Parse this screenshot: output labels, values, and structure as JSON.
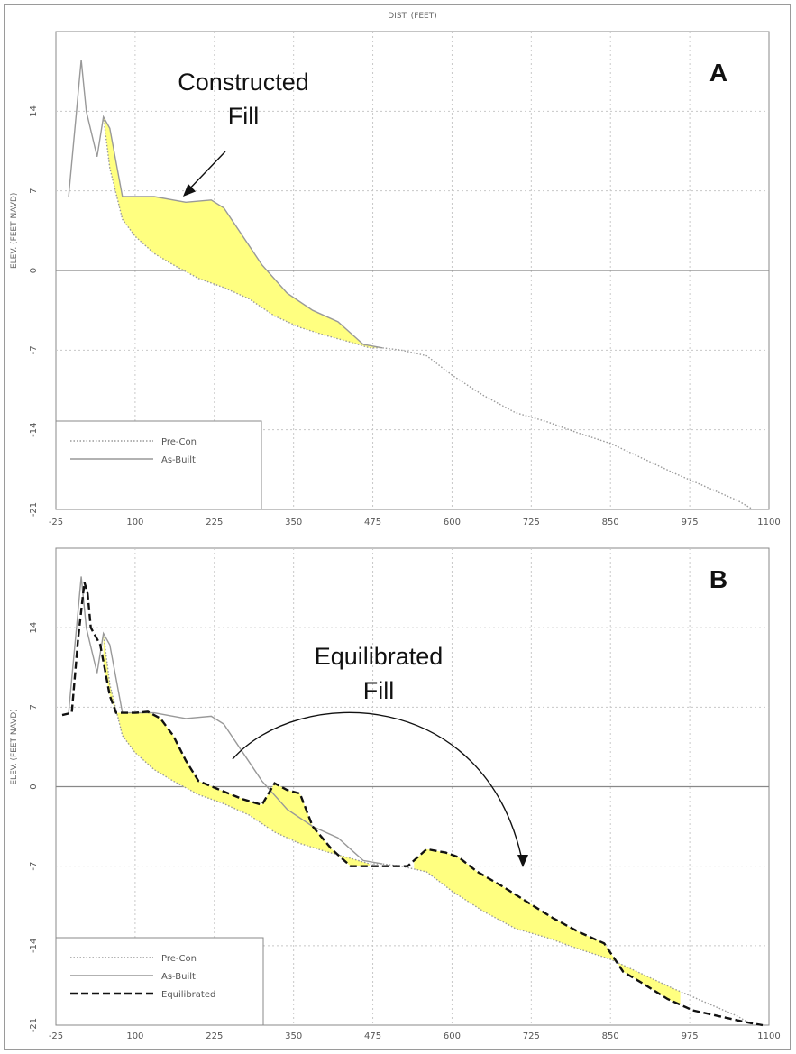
{
  "chart_data": [
    {
      "type": "line",
      "panel_label": "A",
      "title": "DIST. (FEET)",
      "xlabel": "DIST. (FEET)",
      "ylabel": "ELEV. (FEET NAVD)",
      "xlim": [
        -25,
        1100
      ],
      "ylim": [
        -21,
        21
      ],
      "x_ticks": [
        -25,
        100,
        225,
        350,
        475,
        600,
        725,
        850,
        975,
        1100
      ],
      "y_ticks": [
        14,
        7,
        0,
        -7,
        -14,
        -21
      ],
      "grid": true,
      "legend_position": "bottom-left",
      "fill_color": "#ffff80",
      "annotations": [
        {
          "text_lines": [
            "Constructed",
            "Fill"
          ]
        }
      ],
      "series": [
        {
          "name": "Pre-Con",
          "style": "dotted",
          "x": [
            50,
            60,
            80,
            100,
            130,
            160,
            200,
            240,
            280,
            320,
            340,
            360,
            400,
            440,
            470,
            490,
            520,
            560,
            600,
            650,
            700,
            750,
            800,
            850,
            900,
            950,
            1000,
            1050,
            1075
          ],
          "y": [
            13.5,
            9,
            4.5,
            3,
            1.5,
            0.5,
            -0.7,
            -1.5,
            -2.5,
            -4,
            -4.5,
            -5,
            -5.7,
            -6.3,
            -6.8,
            -6.8,
            -7,
            -7.5,
            -9.2,
            -11,
            -12.5,
            -13.3,
            -14.3,
            -15.2,
            -16.5,
            -17.8,
            -19,
            -20.2,
            -21
          ]
        },
        {
          "name": "As-Built",
          "style": "solid",
          "x": [
            -5,
            15,
            23,
            40,
            50,
            60,
            80,
            100,
            130,
            160,
            180,
            220,
            240,
            270,
            300,
            340,
            380,
            420,
            440,
            460,
            490
          ],
          "y": [
            6.5,
            18.5,
            14,
            10,
            13.5,
            12.5,
            6.5,
            6.5,
            6.5,
            6.2,
            6,
            6.2,
            5.5,
            3,
            0.5,
            -2,
            -3.5,
            -4.5,
            -5.5,
            -6.5,
            -6.8
          ]
        }
      ]
    },
    {
      "type": "line",
      "panel_label": "B",
      "xlabel": "",
      "ylabel": "ELEV. (FEET NAVD)",
      "xlim": [
        -25,
        1100
      ],
      "ylim": [
        -21,
        21
      ],
      "x_ticks": [
        -25,
        100,
        225,
        350,
        475,
        600,
        725,
        850,
        975,
        1100
      ],
      "y_ticks": [
        14,
        7,
        0,
        -7,
        -14,
        -21
      ],
      "grid": true,
      "legend_position": "bottom-left",
      "fill_color": "#ffff80",
      "annotations": [
        {
          "text_lines": [
            "Equilibrated",
            "Fill"
          ]
        }
      ],
      "series": [
        {
          "name": "Pre-Con",
          "style": "dotted",
          "x": [
            50,
            60,
            80,
            100,
            130,
            160,
            200,
            240,
            280,
            320,
            340,
            360,
            400,
            440,
            470,
            490,
            520,
            560,
            600,
            650,
            700,
            750,
            800,
            850,
            900,
            950,
            1000,
            1050,
            1075
          ],
          "y": [
            13.5,
            9,
            4.5,
            3,
            1.5,
            0.5,
            -0.7,
            -1.5,
            -2.5,
            -4,
            -4.5,
            -5,
            -5.7,
            -6.3,
            -6.8,
            -6.8,
            -7,
            -7.5,
            -9.2,
            -11,
            -12.5,
            -13.3,
            -14.3,
            -15.2,
            -16.5,
            -17.8,
            -19,
            -20.2,
            -21
          ]
        },
        {
          "name": "As-Built",
          "style": "solid",
          "x": [
            -5,
            15,
            23,
            40,
            50,
            60,
            80,
            100,
            130,
            160,
            180,
            220,
            240,
            270,
            300,
            340,
            380,
            420,
            440,
            460,
            490
          ],
          "y": [
            6.5,
            18.5,
            14,
            10,
            13.5,
            12.5,
            6.5,
            6.5,
            6.5,
            6.2,
            6,
            6.2,
            5.5,
            3,
            0.5,
            -2,
            -3.5,
            -4.5,
            -5.5,
            -6.5,
            -6.8
          ]
        },
        {
          "name": "Equilibrated",
          "style": "dashed",
          "x": [
            -15,
            0,
            10,
            20,
            25,
            30,
            45,
            60,
            70,
            80,
            100,
            120,
            140,
            160,
            180,
            200,
            230,
            270,
            300,
            320,
            340,
            360,
            380,
            410,
            440,
            470,
            500,
            530,
            560,
            590,
            610,
            640,
            680,
            720,
            760,
            800,
            840,
            870,
            900,
            940,
            980,
            1020,
            1060,
            1090
          ],
          "y": [
            6.3,
            6.5,
            13,
            18,
            17,
            14,
            12.5,
            8,
            6.5,
            6.5,
            6.5,
            6.6,
            6,
            4.5,
            2.3,
            0.5,
            -0.2,
            -1.1,
            -1.6,
            0.3,
            -0.3,
            -0.6,
            -3.5,
            -5.5,
            -7,
            -7,
            -7,
            -7,
            -5.5,
            -5.8,
            -6.2,
            -7.5,
            -8.8,
            -10.2,
            -11.6,
            -12.8,
            -13.8,
            -16.3,
            -17.3,
            -18.7,
            -19.7,
            -20.2,
            -20.7,
            -21
          ]
        }
      ]
    }
  ]
}
